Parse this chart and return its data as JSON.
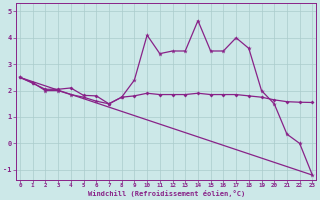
{
  "xlabel": "Windchill (Refroidissement éolien,°C)",
  "line1_x": [
    0,
    1,
    2,
    3,
    4,
    5,
    6,
    7,
    8,
    9,
    10,
    11,
    12,
    13,
    14,
    15,
    16,
    17,
    18,
    19,
    20,
    21,
    22,
    23
  ],
  "line1_y": [
    2.5,
    2.3,
    2.0,
    2.0,
    1.85,
    1.75,
    1.6,
    1.5,
    1.75,
    2.4,
    4.1,
    3.4,
    3.5,
    3.5,
    4.65,
    3.5,
    3.5,
    4.0,
    3.6,
    2.0,
    1.5,
    0.35,
    0.0,
    -1.2
  ],
  "line2_x": [
    0,
    1,
    2,
    3,
    4,
    5,
    6,
    7,
    8,
    9,
    10,
    11,
    12,
    13,
    14,
    15,
    16,
    17,
    18,
    19,
    20,
    21,
    22,
    23
  ],
  "line2_y": [
    2.5,
    2.28,
    2.05,
    2.05,
    2.1,
    1.82,
    1.8,
    1.5,
    1.75,
    1.8,
    1.9,
    1.85,
    1.85,
    1.85,
    1.9,
    1.85,
    1.85,
    1.85,
    1.8,
    1.75,
    1.65,
    1.58,
    1.56,
    1.55
  ],
  "line3_x": [
    0,
    23
  ],
  "line3_y": [
    2.5,
    -1.2
  ],
  "line_color": "#882288",
  "bg_color": "#cce8e8",
  "grid_color": "#aacccc",
  "ylim": [
    -1.4,
    5.3
  ],
  "xlim": [
    -0.3,
    23.3
  ],
  "yticks": [
    -1,
    0,
    1,
    2,
    3,
    4,
    5
  ],
  "xticks": [
    0,
    1,
    2,
    3,
    4,
    5,
    6,
    7,
    8,
    9,
    10,
    11,
    12,
    13,
    14,
    15,
    16,
    17,
    18,
    19,
    20,
    21,
    22,
    23
  ],
  "xtick_labels": [
    "0",
    "1",
    "2",
    "3",
    "4",
    "5",
    "6",
    "7",
    "8",
    "9",
    "10",
    "11",
    "12",
    "13",
    "14",
    "15",
    "16",
    "17",
    "18",
    "19",
    "20",
    "21",
    "22",
    "23"
  ]
}
